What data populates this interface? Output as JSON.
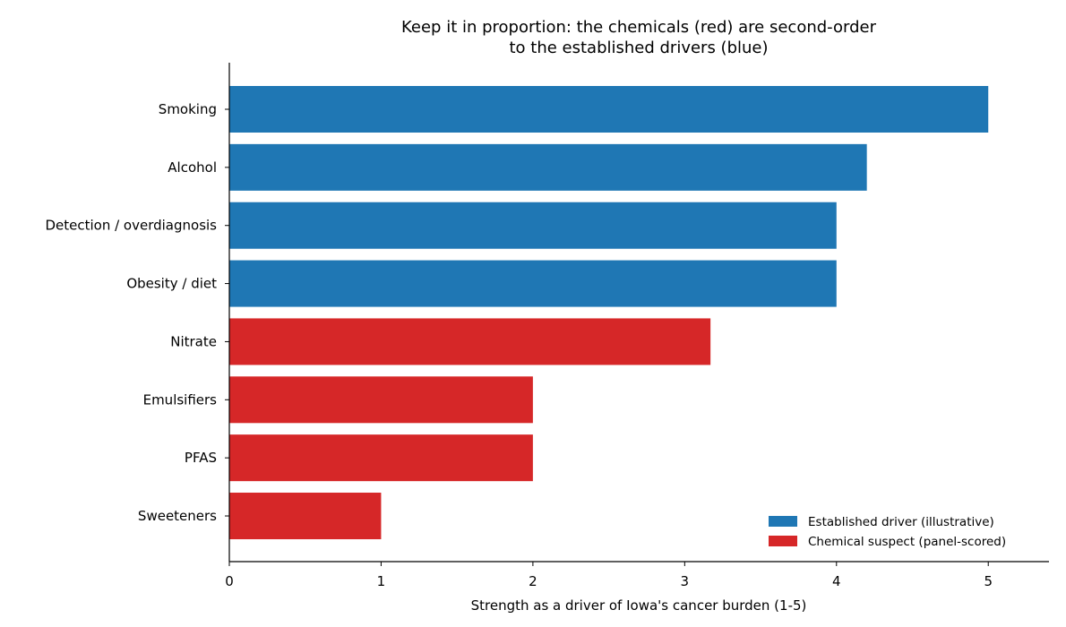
{
  "chart_data": {
    "type": "bar",
    "orientation": "horizontal",
    "title_lines": [
      "Keep it in proportion: the chemicals (red) are second-order",
      "to the established drivers (blue)"
    ],
    "xlabel": "Strength as a driver of Iowa's cancer burden (1-5)",
    "ylabel": "",
    "xlim": [
      0,
      5.4
    ],
    "xticks": [
      "0",
      "1",
      "2",
      "3",
      "4",
      "5"
    ],
    "grid": false,
    "legend_position": "lower-right",
    "categories": [
      "Smoking",
      "Alcohol",
      "Detection / overdiagnosis",
      "Obesity / diet",
      "Nitrate",
      "Emulsifiers",
      "PFAS",
      "Sweeteners"
    ],
    "values": [
      5,
      4.2,
      4,
      4,
      3.17,
      2,
      2,
      1
    ],
    "groups": [
      "established",
      "established",
      "established",
      "established",
      "chemical",
      "chemical",
      "chemical",
      "chemical"
    ],
    "series": [
      {
        "key": "established",
        "name": "Established driver (illustrative)",
        "color": "#1f77b4"
      },
      {
        "key": "chemical",
        "name": "Chemical suspect (panel-scored)",
        "color": "#d62728"
      }
    ]
  }
}
